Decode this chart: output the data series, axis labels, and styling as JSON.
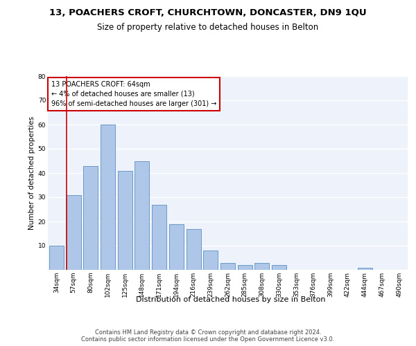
{
  "title1": "13, POACHERS CROFT, CHURCHTOWN, DONCASTER, DN9 1QU",
  "title2": "Size of property relative to detached houses in Belton",
  "xlabel": "Distribution of detached houses by size in Belton",
  "ylabel": "Number of detached properties",
  "bar_labels": [
    "34sqm",
    "57sqm",
    "80sqm",
    "102sqm",
    "125sqm",
    "148sqm",
    "171sqm",
    "194sqm",
    "216sqm",
    "239sqm",
    "262sqm",
    "285sqm",
    "308sqm",
    "330sqm",
    "353sqm",
    "376sqm",
    "399sqm",
    "422sqm",
    "444sqm",
    "467sqm",
    "490sqm"
  ],
  "bar_values": [
    10,
    31,
    43,
    60,
    41,
    45,
    27,
    19,
    17,
    8,
    3,
    2,
    3,
    2,
    0,
    0,
    0,
    0,
    1,
    0,
    0
  ],
  "bar_color": "#aec6e8",
  "bar_edge_color": "#5a8fc0",
  "bg_color": "#eef2fb",
  "grid_color": "#ffffff",
  "vline_color": "#cc0000",
  "annotation_text": "13 POACHERS CROFT: 64sqm\n← 4% of detached houses are smaller (13)\n96% of semi-detached houses are larger (301) →",
  "annotation_box_color": "#cc0000",
  "ylim": [
    0,
    80
  ],
  "yticks": [
    0,
    10,
    20,
    30,
    40,
    50,
    60,
    70,
    80
  ],
  "footer": "Contains HM Land Registry data © Crown copyright and database right 2024.\nContains public sector information licensed under the Open Government Licence v3.0.",
  "title1_fontsize": 9.5,
  "title2_fontsize": 8.5,
  "xlabel_fontsize": 8,
  "ylabel_fontsize": 7.5,
  "tick_fontsize": 6.5,
  "annotation_fontsize": 7,
  "footer_fontsize": 6
}
